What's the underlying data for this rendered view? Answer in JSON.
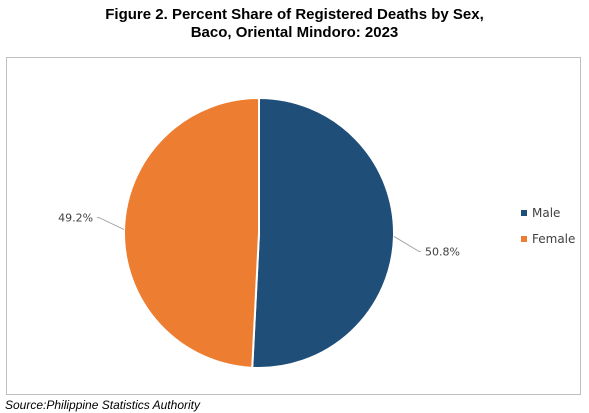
{
  "figure": {
    "title_line1": "Figure 2. Percent Share of Registered Deaths by Sex,",
    "title_line2": "Baco, Oriental Mindoro: 2023",
    "source": "Source:Philippine Statistics Authority"
  },
  "chart_data": {
    "type": "pie",
    "title": "Figure 2. Percent Share of Registered Deaths by Sex, Baco, Oriental Mindoro: 2023",
    "categories": [
      "Male",
      "Female"
    ],
    "values": [
      50.8,
      49.2
    ],
    "labels": [
      "50.8%",
      "49.2%"
    ],
    "colors": [
      "#1f4e79",
      "#ed7d31"
    ],
    "legend": "right",
    "start_angle": "12 o'clock, clockwise"
  }
}
